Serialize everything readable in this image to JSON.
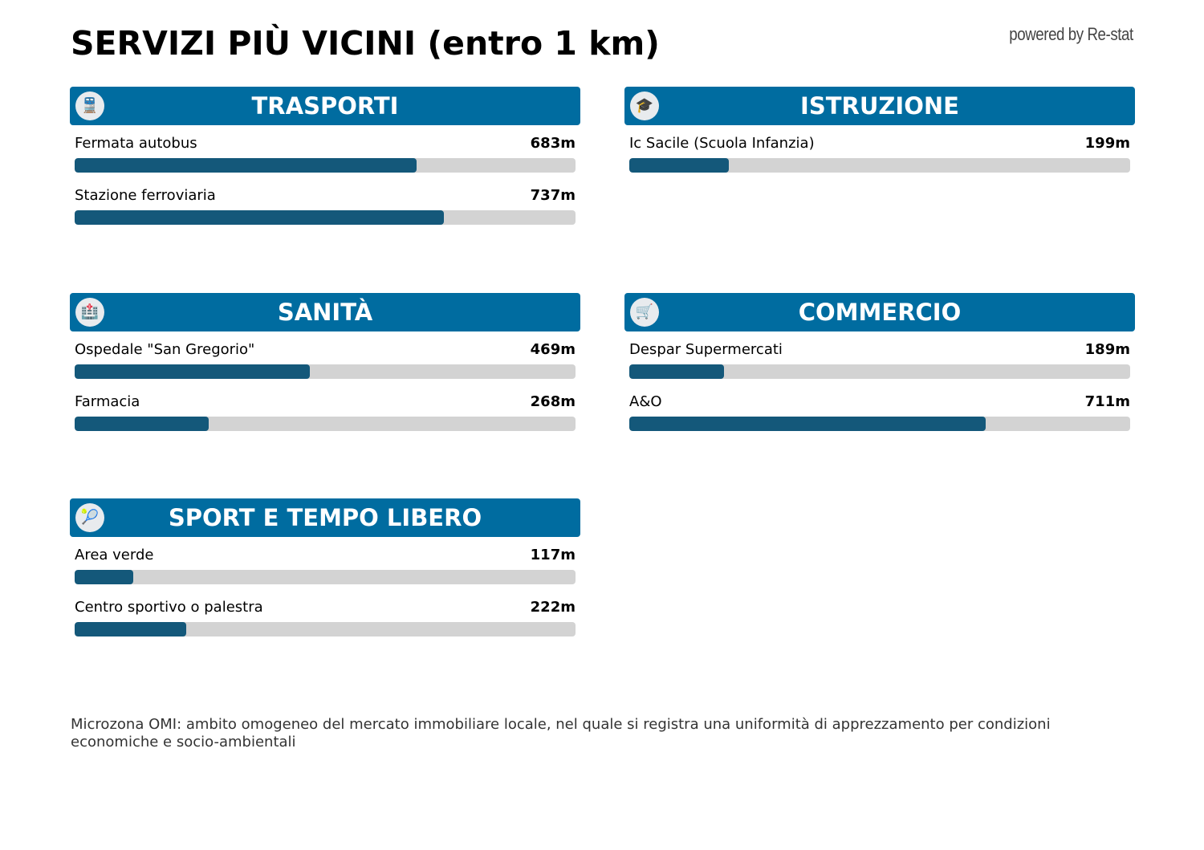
{
  "title": "SERVIZI PIÙ VICINI (entro 1 km)",
  "powered_by": "powered by Re-stat",
  "max_distance_m": 1000,
  "colors": {
    "header": "#006ca0",
    "bar_fill": "#14587a",
    "bar_track": "#d3d3d3"
  },
  "sections": [
    {
      "title": "TRASPORTI",
      "icon": "train-icon",
      "glyph": "🚆",
      "items": [
        {
          "label": "Fermata autobus",
          "value": "683m",
          "meters": 683
        },
        {
          "label": "Stazione ferroviaria",
          "value": "737m",
          "meters": 737
        }
      ]
    },
    {
      "title": "ISTRUZIONE",
      "icon": "student-icon",
      "glyph": "🎓",
      "items": [
        {
          "label": "Ic Sacile (Scuola Infanzia)",
          "value": "199m",
          "meters": 199
        }
      ]
    },
    {
      "title": "SANITÀ",
      "icon": "hospital-icon",
      "glyph": "🏥",
      "items": [
        {
          "label": "Ospedale \"San Gregorio\"",
          "value": "469m",
          "meters": 469
        },
        {
          "label": "Farmacia",
          "value": "268m",
          "meters": 268
        }
      ]
    },
    {
      "title": "COMMERCIO",
      "icon": "cart-icon",
      "glyph": "🛒",
      "items": [
        {
          "label": "Despar Supermercati",
          "value": "189m",
          "meters": 189
        },
        {
          "label": "A&O",
          "value": "711m",
          "meters": 711
        }
      ]
    },
    {
      "title": "SPORT E TEMPO LIBERO",
      "icon": "tennis-racket-icon",
      "glyph": "🎾",
      "items": [
        {
          "label": "Area verde",
          "value": "117m",
          "meters": 117
        },
        {
          "label": "Centro sportivo o palestra",
          "value": "222m",
          "meters": 222
        }
      ]
    }
  ],
  "footnote": "Microzona OMI: ambito omogeneo del mercato immobiliare locale, nel quale si registra una uniformità di apprezzamento per condizioni economiche e socio-ambientali"
}
